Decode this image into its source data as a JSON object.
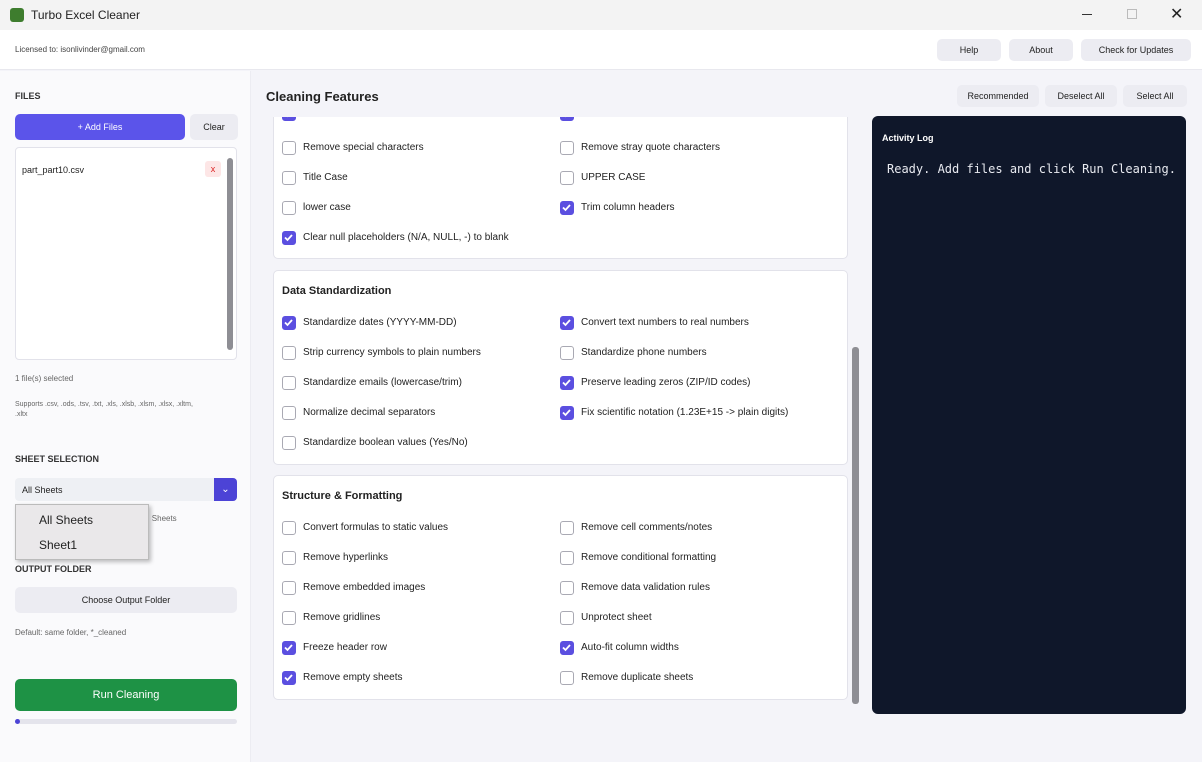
{
  "window": {
    "title": "Turbo Excel Cleaner"
  },
  "header": {
    "licensed": "Licensed to: isonlivinder@gmail.com",
    "buttons": [
      "Help",
      "About",
      "Check for Updates"
    ]
  },
  "sidebar": {
    "files_heading": "FILES",
    "add_files": "+ Add Files",
    "clear": "Clear",
    "files": [
      {
        "name": "part_part10.csv",
        "remove": "x"
      }
    ],
    "selected_count": "1 file(s) selected",
    "supports": "Supports .csv, .ods, .tsv, .txt, .xls, .xlsb, .xlsm, .xlsx, .xltm, .xltx",
    "sheet_heading": "SHEET SELECTION",
    "sheet_select": "All Sheets",
    "sheet_hint": "ll Sheets",
    "sheet_options": [
      "All Sheets",
      "Sheet1"
    ],
    "output_heading": "OUTPUT FOLDER",
    "choose_output": "Choose Output Folder",
    "output_default": "Default: same folder, *_cleaned",
    "run": "Run Cleaning"
  },
  "main": {
    "title": "Cleaning Features",
    "buttons": [
      "Recommended",
      "Deselect All",
      "Select All"
    ],
    "sections": [
      {
        "items": [
          {
            "label": "Remove special characters",
            "checked": false
          },
          {
            "label": "Remove stray quote characters",
            "checked": false
          },
          {
            "label": "Title Case",
            "checked": false
          },
          {
            "label": "UPPER CASE",
            "checked": false
          },
          {
            "label": "lower case",
            "checked": false
          },
          {
            "label": "Trim column headers",
            "checked": true
          },
          {
            "label": "Clear null placeholders (N/A, NULL, -) to blank",
            "checked": true
          }
        ]
      },
      {
        "title": "Data Standardization",
        "items": [
          {
            "label": "Standardize dates (YYYY-MM-DD)",
            "checked": true
          },
          {
            "label": "Convert text numbers to real numbers",
            "checked": true
          },
          {
            "label": "Strip currency symbols to plain numbers",
            "checked": false
          },
          {
            "label": "Standardize phone numbers",
            "checked": false
          },
          {
            "label": "Standardize emails (lowercase/trim)",
            "checked": false
          },
          {
            "label": "Preserve leading zeros (ZIP/ID codes)",
            "checked": true
          },
          {
            "label": "Normalize decimal separators",
            "checked": false
          },
          {
            "label": "Fix scientific notation (1.23E+15 -> plain digits)",
            "checked": true
          },
          {
            "label": "Standardize boolean values (Yes/No)",
            "checked": false
          }
        ]
      },
      {
        "title": "Structure & Formatting",
        "items": [
          {
            "label": "Convert formulas to static values",
            "checked": false
          },
          {
            "label": "Remove cell comments/notes",
            "checked": false
          },
          {
            "label": "Remove hyperlinks",
            "checked": false
          },
          {
            "label": "Remove conditional formatting",
            "checked": false
          },
          {
            "label": "Remove embedded images",
            "checked": false
          },
          {
            "label": "Remove data validation rules",
            "checked": false
          },
          {
            "label": "Remove gridlines",
            "checked": false
          },
          {
            "label": "Unprotect sheet",
            "checked": false
          },
          {
            "label": "Freeze header row",
            "checked": true
          },
          {
            "label": "Auto-fit column widths",
            "checked": true
          },
          {
            "label": "Remove empty sheets",
            "checked": true
          },
          {
            "label": "Remove duplicate sheets",
            "checked": false
          }
        ]
      }
    ]
  },
  "log": {
    "title": "Activity Log",
    "text": "Ready. Add files and click Run Cleaning."
  }
}
